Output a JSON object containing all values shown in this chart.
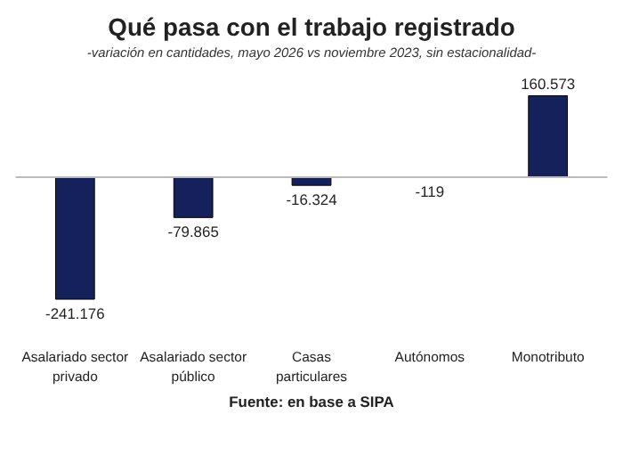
{
  "chart_data": {
    "type": "bar",
    "title": "Qué pasa con el trabajo registrado",
    "subtitle": "-variación en cantidades, mayo 2026 vs noviembre 2023, sin estacionalidad-",
    "categories": [
      "Asalariado sector\nprivado",
      "Asalariado sector\npúblico",
      "Casas\nparticulares",
      "Autónomos",
      "Monotributo"
    ],
    "values": [
      -241176,
      -79865,
      -16324,
      -119,
      160573
    ],
    "value_labels": [
      "-241.176",
      "-79.865",
      "-16.324",
      "-119",
      "160.573"
    ],
    "color": "#14215a",
    "annotations": [
      "Fuente: en base a SIPA"
    ]
  }
}
